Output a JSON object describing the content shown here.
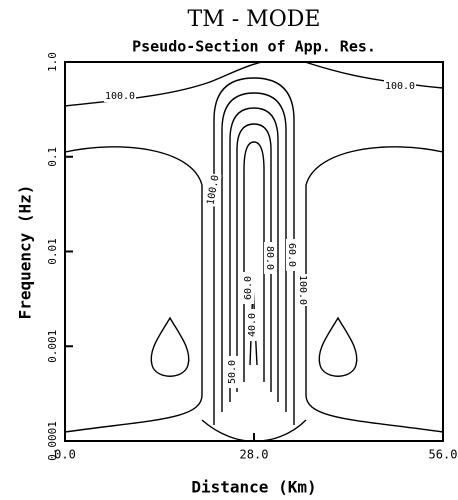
{
  "chart_data": {
    "type": "contour",
    "title": "TM - MODE",
    "subtitle": "Pseudo-Section of App. Res.",
    "xlabel": "Distance (Km)",
    "ylabel": "Frequency (Hz)",
    "xlim": [
      0,
      56
    ],
    "xticks": [
      {
        "value": 0,
        "label": "0.0"
      },
      {
        "value": 28,
        "label": "28.0"
      },
      {
        "value": 56,
        "label": "56.0"
      }
    ],
    "ylim": [
      0.0001,
      1
    ],
    "yticks": [
      0.0001,
      0.001,
      0.01,
      0.1,
      {
        "value": 1,
        "label": "1.0"
      }
    ],
    "yscale": "log",
    "color": "#000000",
    "contour_labels": [
      "100.0",
      "100.0",
      "100.0",
      "80.0",
      "60.0",
      "60.0",
      "40.0",
      "100.0",
      "50.0"
    ]
  }
}
